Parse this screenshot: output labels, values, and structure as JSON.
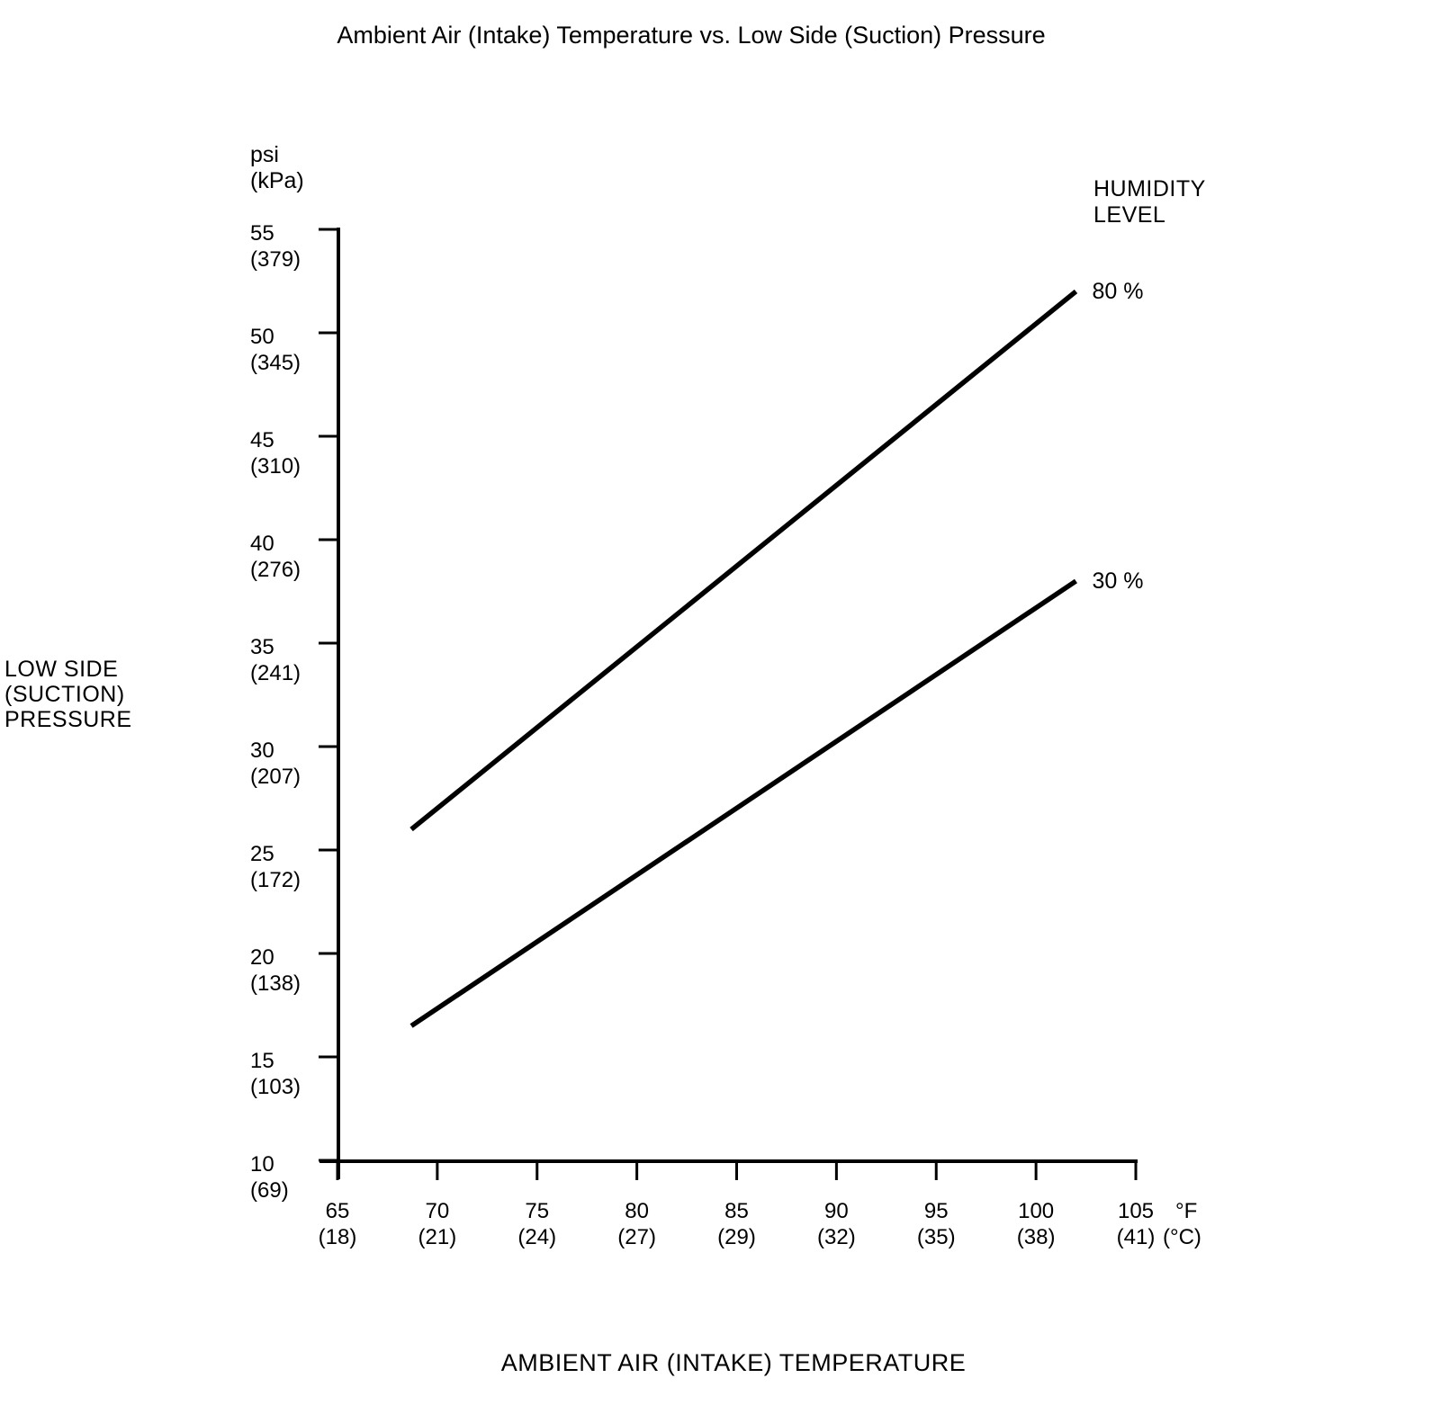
{
  "title": "Ambient Air (Intake) Temperature vs. Low Side (Suction) Pressure",
  "y_axis": {
    "unit_psi": "psi",
    "unit_kpa": "(kPa)",
    "title_lines": [
      "LOW SIDE",
      "(SUCTION)",
      "PRESSURE"
    ]
  },
  "x_axis": {
    "unit_f": "°F",
    "unit_c": "(°C)",
    "title": "AMBIENT AIR (INTAKE) TEMPERATURE"
  },
  "legend": {
    "title_lines": [
      "HUMIDITY",
      "LEVEL"
    ]
  },
  "chart_data": {
    "type": "line",
    "title": "Ambient Air (Intake) Temperature vs. Low Side (Suction) Pressure",
    "xlabel": "AMBIENT AIR (INTAKE) TEMPERATURE",
    "ylabel": "LOW SIDE (SUCTION) PRESSURE",
    "x_unit_primary": "°F",
    "x_unit_secondary": "°C",
    "y_unit_primary": "psi",
    "y_unit_secondary": "kPa",
    "xlim": [
      65,
      105
    ],
    "ylim": [
      10,
      55
    ],
    "grid": false,
    "line_color": "#000000",
    "background_color": "#ffffff",
    "legend_title": "HUMIDITY LEVEL",
    "legend_position": "right of line ends",
    "x_ticks": [
      {
        "f": 65,
        "c": 18
      },
      {
        "f": 70,
        "c": 21
      },
      {
        "f": 75,
        "c": 24
      },
      {
        "f": 80,
        "c": 27
      },
      {
        "f": 85,
        "c": 29
      },
      {
        "f": 90,
        "c": 32
      },
      {
        "f": 95,
        "c": 35
      },
      {
        "f": 100,
        "c": 38
      },
      {
        "f": 105,
        "c": 41
      }
    ],
    "y_ticks": [
      {
        "psi": 55,
        "kpa": 379
      },
      {
        "psi": 50,
        "kpa": 345
      },
      {
        "psi": 45,
        "kpa": 310
      },
      {
        "psi": 40,
        "kpa": 276
      },
      {
        "psi": 35,
        "kpa": 241
      },
      {
        "psi": 30,
        "kpa": 207
      },
      {
        "psi": 25,
        "kpa": 172
      },
      {
        "psi": 20,
        "kpa": 138
      },
      {
        "psi": 15,
        "kpa": 103
      },
      {
        "psi": 10,
        "kpa": 69
      }
    ],
    "series": [
      {
        "name": "80 %",
        "humidity_percent": 80,
        "points": [
          {
            "x": 68.7,
            "y": 26.0
          },
          {
            "x": 102.0,
            "y": 52.0
          }
        ]
      },
      {
        "name": "30 %",
        "humidity_percent": 30,
        "points": [
          {
            "x": 68.7,
            "y": 16.5
          },
          {
            "x": 102.0,
            "y": 38.0
          }
        ]
      }
    ]
  }
}
